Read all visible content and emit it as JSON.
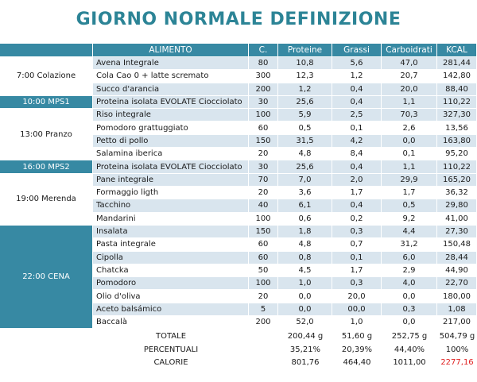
{
  "header": {
    "title": "GIORNO NORMALE DEFINIZIONE"
  },
  "table": {
    "columns": [
      "ALIMENTO",
      "C.",
      "Proteine",
      "Grassi",
      "Carboidrati",
      "KCAL"
    ],
    "groups": [
      {
        "meal": "7:00 Colazione",
        "rows": [
          [
            "Avena Integrale",
            "80",
            "10,8",
            "5,6",
            "47,0",
            "281,44"
          ],
          [
            "Cola Cao 0 + latte scremato",
            "300",
            "12,3",
            "1,2",
            "20,7",
            "142,80"
          ],
          [
            "Succo d'arancia",
            "200",
            "1,2",
            "0,4",
            "20,0",
            "88,40"
          ]
        ]
      },
      {
        "meal": "10:00 MPS1",
        "rows": [
          [
            "Proteina isolata EVOLATE Ciocciolato",
            "30",
            "25,6",
            "0,4",
            "1,1",
            "110,22"
          ]
        ]
      },
      {
        "meal": "13:00 Pranzo",
        "rows": [
          [
            "Riso integrale",
            "100",
            "5,9",
            "2,5",
            "70,3",
            "327,30"
          ],
          [
            "Pomodoro grattuggiato",
            "60",
            "0,5",
            "0,1",
            "2,6",
            "13,56"
          ],
          [
            "Petto di pollo",
            "150",
            "31,5",
            "4,2",
            "0,0",
            "163,80"
          ],
          [
            "Salamina iberica",
            "20",
            "4,8",
            "8,4",
            "0,1",
            "95,20"
          ]
        ]
      },
      {
        "meal": "16:00 MPS2",
        "rows": [
          [
            "Proteina isolata EVOLATE Ciocciolato",
            "30",
            "25,6",
            "0,4",
            "1,1",
            "110,22"
          ]
        ]
      },
      {
        "meal": "19:00 Merenda",
        "rows": [
          [
            "Pane integrale",
            "70",
            "7,0",
            "2,0",
            "29,9",
            "165,20"
          ],
          [
            "Formaggio ligth",
            "20",
            "3,6",
            "1,7",
            "1,7",
            "36,32"
          ],
          [
            "Tacchino",
            "40",
            "6,1",
            "0,4",
            "0,5",
            "29,80"
          ],
          [
            "Mandarini",
            "100",
            "0,6",
            "0,2",
            "9,2",
            "41,00"
          ]
        ]
      },
      {
        "meal": "22:00 CENA",
        "rows": [
          [
            "Insalata",
            "150",
            "1,8",
            "0,3",
            "4,4",
            "27,30"
          ],
          [
            "Pasta integrale",
            "60",
            "4,8",
            "0,7",
            "31,2",
            "150,48"
          ],
          [
            "Cipolla",
            "60",
            "0,8",
            "0,1",
            "6,0",
            "28,44"
          ],
          [
            "Chatcka",
            "50",
            "4,5",
            "1,7",
            "2,9",
            "44,90"
          ],
          [
            "Pomodoro",
            "100",
            "1,0",
            "0,3",
            "4,0",
            "22,70"
          ],
          [
            "Olio d'oliva",
            "20",
            "0,0",
            "20,0",
            "0,0",
            "180,00"
          ],
          [
            "Aceto balsámico",
            "5",
            "0,0",
            "00,0",
            "0,3",
            "1,08"
          ],
          [
            "Baccalà",
            "200",
            "52,0",
            "1,0",
            "0,0",
            "217,00"
          ]
        ]
      }
    ],
    "totals": [
      {
        "label": "TOTALE",
        "values": [
          "200,44 g",
          "51,60 g",
          "252,75 g",
          "504,79 g"
        ]
      },
      {
        "label": "PERCENTUALI",
        "values": [
          "35,21%",
          "20,39%",
          "44,40%",
          "100%"
        ]
      },
      {
        "label": "CALORIE",
        "values": [
          "801,76",
          "464,40",
          "1011,00",
          "2277,16"
        ]
      }
    ]
  }
}
